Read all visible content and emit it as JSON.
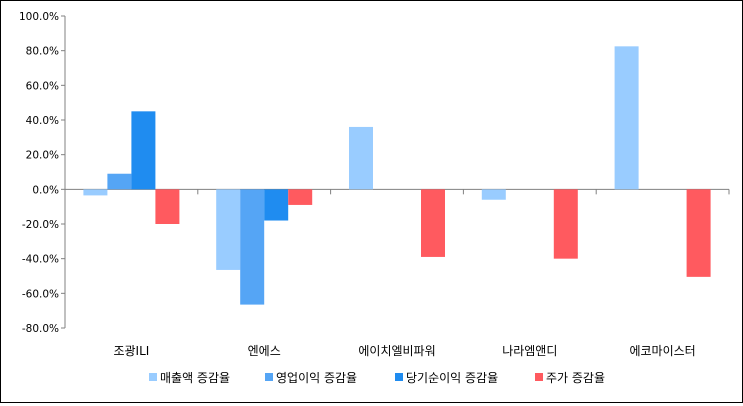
{
  "chart_data": {
    "type": "bar",
    "categories": [
      "조광ILI",
      "엔에스",
      "에이치엘비파워",
      "나라엠앤디",
      "에코마이스터"
    ],
    "series": [
      {
        "name": "매출액 증감율",
        "color": "#99CCFF",
        "values": [
          -3.5,
          -46.5,
          36.0,
          -6.0,
          82.5
        ]
      },
      {
        "name": "영업이익 증감율",
        "color": "#55A5F5",
        "values": [
          9.0,
          -66.5,
          null,
          null,
          null
        ]
      },
      {
        "name": "당기순이익 증감율",
        "color": "#1F8CF0",
        "values": [
          45.0,
          -18.0,
          null,
          null,
          null
        ]
      },
      {
        "name": "주가 증감율",
        "color": "#FF5A5F",
        "values": [
          -20.0,
          -9.0,
          -39.0,
          -40.0,
          -50.5
        ]
      }
    ],
    "yticks": [
      "-80.0%",
      "-60.0%",
      "-40.0%",
      "-20.0%",
      "0.0%",
      "20.0%",
      "40.0%",
      "60.0%",
      "80.0%",
      "100.0%"
    ],
    "ylim": [
      -80,
      100
    ],
    "grid": false,
    "legend": "bottom"
  }
}
